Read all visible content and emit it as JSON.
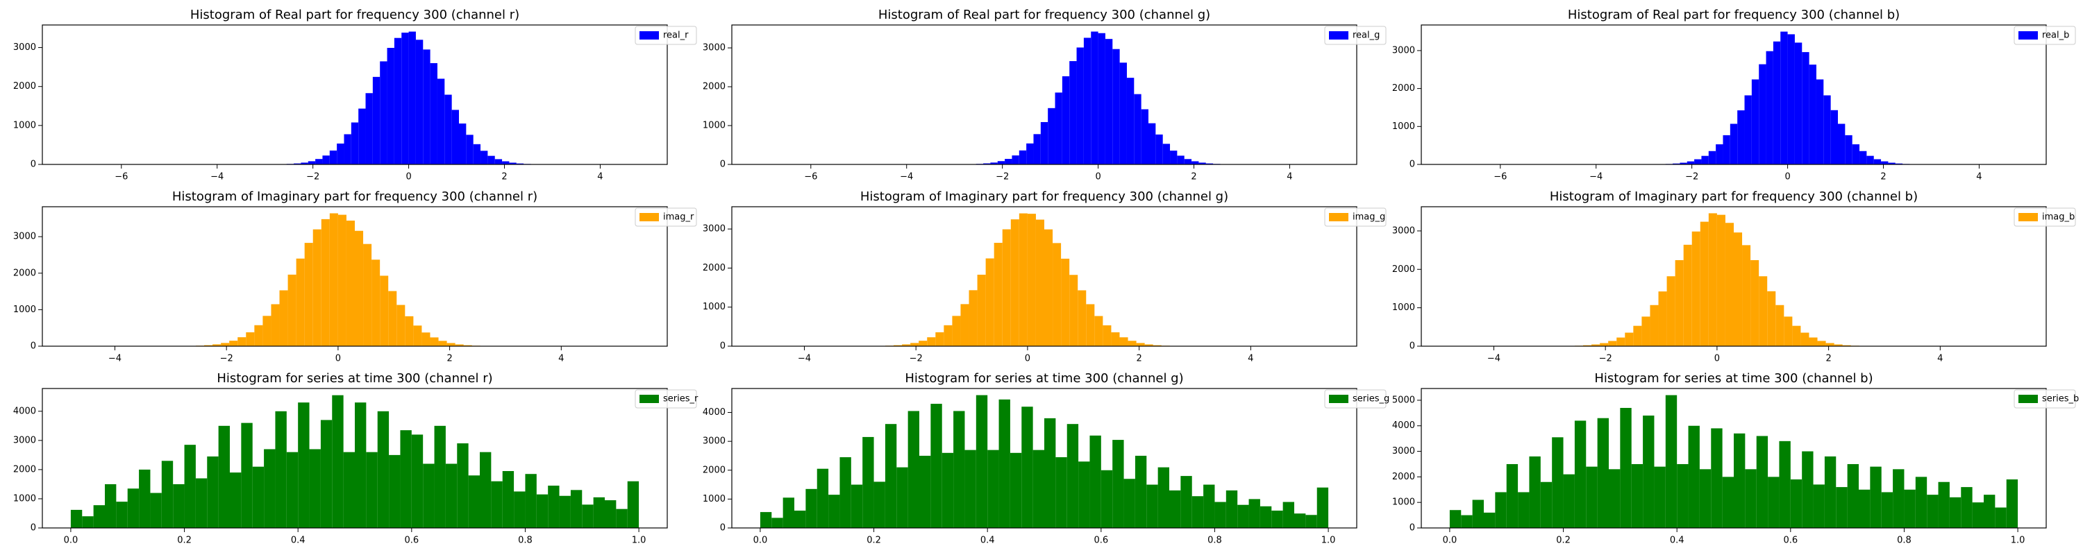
{
  "chart_data": [
    {
      "type": "histogram",
      "title": "Histogram of Real part for frequency 300 (channel r)",
      "legend": "upper right",
      "bins": [
        -3,
        -2.85,
        -2.7,
        -2.55,
        -2.4,
        -2.25,
        -2.1,
        -1.95,
        -1.8,
        -1.65,
        -1.5,
        -1.35,
        -1.2,
        -1.05,
        -0.9,
        -0.75,
        -0.6,
        -0.45,
        -0.3,
        -0.15,
        0,
        0.15,
        0.3,
        0.45,
        0.6,
        0.75,
        0.9,
        1.05,
        1.2,
        1.35,
        1.5,
        1.65,
        1.8,
        1.95,
        2.1,
        2.25,
        2.4,
        2.55,
        2.7,
        2.85,
        3
      ],
      "series": [
        {
          "name": "real_r",
          "color": "#0000ff",
          "values": [
            1,
            3,
            6,
            13,
            25,
            46,
            82,
            139,
            228,
            356,
            536,
            775,
            1077,
            1433,
            1830,
            2247,
            2646,
            2992,
            3247,
            3383,
            3410,
            3200,
            2950,
            2600,
            2200,
            1790,
            1400,
            1050,
            760,
            520,
            350,
            220,
            135,
            80,
            45,
            24,
            12,
            6,
            3,
            1
          ]
        }
      ],
      "xlim": [
        -7.65,
        5.4
      ],
      "ylim": [
        0,
        3580
      ],
      "xticks": [
        {
          "value": -6,
          "label": "−6"
        },
        {
          "value": -4,
          "label": "−4"
        },
        {
          "value": -2,
          "label": "−2"
        },
        0,
        2,
        4
      ],
      "yticks": [
        0,
        1000,
        2000,
        3000
      ]
    },
    {
      "type": "histogram",
      "title": "Histogram of Real part for frequency 300 (channel g)",
      "legend": "upper right",
      "bins": [
        -3,
        -2.85,
        -2.7,
        -2.55,
        -2.4,
        -2.25,
        -2.1,
        -1.95,
        -1.8,
        -1.65,
        -1.5,
        -1.35,
        -1.2,
        -1.05,
        -0.9,
        -0.75,
        -0.6,
        -0.45,
        -0.3,
        -0.15,
        0,
        0.15,
        0.3,
        0.45,
        0.6,
        0.75,
        0.9,
        1.05,
        1.2,
        1.35,
        1.5,
        1.65,
        1.8,
        1.95,
        2.1,
        2.25,
        2.4,
        2.55,
        2.7,
        2.85,
        3
      ],
      "series": [
        {
          "name": "real_g",
          "color": "#0000ff",
          "values": [
            2,
            4,
            7,
            14,
            27,
            48,
            85,
            142,
            231,
            360,
            540,
            780,
            1090,
            1450,
            1850,
            2270,
            2660,
            3010,
            3260,
            3420,
            3380,
            3230,
            2970,
            2620,
            2230,
            1810,
            1420,
            1060,
            770,
            530,
            355,
            225,
            138,
            81,
            46,
            25,
            13,
            6,
            3,
            1
          ]
        }
      ],
      "xlim": [
        -7.65,
        5.4
      ],
      "ylim": [
        0,
        3590
      ],
      "xticks": [
        {
          "value": -6,
          "label": "−6"
        },
        {
          "value": -4,
          "label": "−4"
        },
        {
          "value": -2,
          "label": "−2"
        },
        0,
        2,
        4
      ],
      "yticks": [
        0,
        1000,
        2000,
        3000
      ]
    },
    {
      "type": "histogram",
      "title": "Histogram of Real part for frequency 300 (channel b)",
      "legend": "upper right",
      "bins": [
        -3,
        -2.85,
        -2.7,
        -2.55,
        -2.4,
        -2.25,
        -2.1,
        -1.95,
        -1.8,
        -1.65,
        -1.5,
        -1.35,
        -1.2,
        -1.05,
        -0.9,
        -0.75,
        -0.6,
        -0.45,
        -0.3,
        -0.15,
        0,
        0.15,
        0.3,
        0.45,
        0.6,
        0.75,
        0.9,
        1.05,
        1.2,
        1.35,
        1.5,
        1.65,
        1.8,
        1.95,
        2.1,
        2.25,
        2.4,
        2.55,
        2.7,
        2.85,
        3
      ],
      "series": [
        {
          "name": "real_b",
          "color": "#0000ff",
          "values": [
            1,
            3,
            6,
            12,
            24,
            45,
            80,
            136,
            225,
            352,
            530,
            770,
            1070,
            1425,
            1820,
            2240,
            2640,
            2985,
            3240,
            3500,
            3430,
            3210,
            2960,
            2630,
            2240,
            1820,
            1430,
            1070,
            770,
            530,
            352,
            226,
            137,
            81,
            45,
            24,
            12,
            6,
            3,
            2
          ]
        }
      ],
      "xlim": [
        -7.65,
        5.4
      ],
      "ylim": [
        0,
        3675
      ],
      "xticks": [
        {
          "value": -6,
          "label": "−6"
        },
        {
          "value": -4,
          "label": "−4"
        },
        {
          "value": -2,
          "label": "−2"
        },
        0,
        2,
        4
      ],
      "yticks": [
        0,
        1000,
        2000,
        3000
      ]
    },
    {
      "type": "histogram",
      "title": "Histogram of Imaginary part for frequency 300 (channel r)",
      "legend": "upper right",
      "bins": [
        -3,
        -2.85,
        -2.7,
        -2.55,
        -2.4,
        -2.25,
        -2.1,
        -1.95,
        -1.8,
        -1.65,
        -1.5,
        -1.35,
        -1.2,
        -1.05,
        -0.9,
        -0.75,
        -0.6,
        -0.45,
        -0.3,
        -0.15,
        0,
        0.15,
        0.3,
        0.45,
        0.6,
        0.75,
        0.9,
        1.05,
        1.2,
        1.35,
        1.5,
        1.65,
        1.8,
        1.95,
        2.1,
        2.25,
        2.4,
        2.55,
        2.7,
        2.85,
        3
      ],
      "series": [
        {
          "name": "imag_r",
          "color": "#ffa500",
          "values": [
            1,
            3,
            7,
            14,
            27,
            50,
            88,
            150,
            245,
            380,
            575,
            830,
            1150,
            1530,
            1960,
            2400,
            2830,
            3200,
            3480,
            3640,
            3600,
            3440,
            3160,
            2800,
            2370,
            1930,
            1510,
            1130,
            820,
            565,
            375,
            240,
            146,
            86,
            48,
            26,
            13,
            6,
            3,
            1
          ]
        }
      ],
      "xlim": [
        -5.3,
        5.9
      ],
      "ylim": [
        0,
        3820
      ],
      "xticks": [
        {
          "value": -4,
          "label": "−4"
        },
        {
          "value": -2,
          "label": "−2"
        },
        0,
        2,
        4
      ],
      "yticks": [
        0,
        1000,
        2000,
        3000
      ]
    },
    {
      "type": "histogram",
      "title": "Histogram of Imaginary part for frequency 300 (channel g)",
      "legend": "upper right",
      "bins": [
        -3,
        -2.85,
        -2.7,
        -2.55,
        -2.4,
        -2.25,
        -2.1,
        -1.95,
        -1.8,
        -1.65,
        -1.5,
        -1.35,
        -1.2,
        -1.05,
        -0.9,
        -0.75,
        -0.6,
        -0.45,
        -0.3,
        -0.15,
        0,
        0.15,
        0.3,
        0.45,
        0.6,
        0.75,
        0.9,
        1.05,
        1.2,
        1.35,
        1.5,
        1.65,
        1.8,
        1.95,
        2.1,
        2.25,
        2.4,
        2.55,
        2.7,
        2.85,
        3
      ],
      "series": [
        {
          "name": "imag_g",
          "color": "#ffa500",
          "values": [
            1,
            3,
            6,
            13,
            25,
            46,
            82,
            139,
            228,
            356,
            536,
            775,
            1077,
            1433,
            1830,
            2247,
            2646,
            2992,
            3247,
            3400,
            3390,
            3240,
            2990,
            2640,
            2240,
            1825,
            1430,
            1075,
            772,
            534,
            355,
            227,
            138,
            81,
            45,
            24,
            12,
            6,
            3,
            1
          ]
        }
      ],
      "xlim": [
        -5.3,
        5.9
      ],
      "ylim": [
        0,
        3570
      ],
      "xticks": [
        {
          "value": -4,
          "label": "−4"
        },
        {
          "value": -2,
          "label": "−2"
        },
        0,
        2,
        4
      ],
      "yticks": [
        0,
        1000,
        2000,
        3000
      ]
    },
    {
      "type": "histogram",
      "title": "Histogram of Imaginary part for frequency 300 (channel b)",
      "legend": "upper right",
      "bins": [
        -3,
        -2.85,
        -2.7,
        -2.55,
        -2.4,
        -2.25,
        -2.1,
        -1.95,
        -1.8,
        -1.65,
        -1.5,
        -1.35,
        -1.2,
        -1.05,
        -0.9,
        -0.75,
        -0.6,
        -0.45,
        -0.3,
        -0.15,
        0,
        0.15,
        0.3,
        0.45,
        0.6,
        0.75,
        0.9,
        1.05,
        1.2,
        1.35,
        1.5,
        1.65,
        1.8,
        1.95,
        2.1,
        2.25,
        2.4,
        2.55,
        2.7,
        2.85,
        3
      ],
      "series": [
        {
          "name": "imag_b",
          "color": "#ffa500",
          "values": [
            1,
            3,
            6,
            12,
            24,
            45,
            80,
            136,
            225,
            352,
            530,
            770,
            1070,
            1425,
            1820,
            2240,
            2640,
            2985,
            3240,
            3460,
            3420,
            3210,
            2960,
            2630,
            2240,
            1820,
            1430,
            1070,
            770,
            530,
            352,
            226,
            137,
            81,
            45,
            24,
            12,
            6,
            3,
            2
          ]
        }
      ],
      "xlim": [
        -5.3,
        5.9
      ],
      "ylim": [
        0,
        3630
      ],
      "xticks": [
        {
          "value": -4,
          "label": "−4"
        },
        {
          "value": -2,
          "label": "−2"
        },
        0,
        2,
        4
      ],
      "yticks": [
        0,
        1000,
        2000,
        3000
      ]
    },
    {
      "type": "histogram",
      "title": "Histogram for series at time 300 (channel r)",
      "legend": "upper right",
      "bins": [
        0,
        0.02,
        0.04,
        0.06,
        0.08,
        0.1,
        0.12,
        0.14,
        0.16,
        0.18,
        0.2,
        0.22,
        0.24,
        0.26,
        0.28,
        0.3,
        0.32,
        0.34,
        0.36,
        0.38,
        0.4,
        0.42,
        0.44,
        0.46,
        0.48,
        0.5,
        0.52,
        0.54,
        0.56,
        0.58,
        0.6,
        0.62,
        0.64,
        0.66,
        0.68,
        0.7,
        0.72,
        0.74,
        0.76,
        0.78,
        0.8,
        0.82,
        0.84,
        0.86,
        0.88,
        0.9,
        0.92,
        0.94,
        0.96,
        0.98,
        1
      ],
      "series": [
        {
          "name": "series_r",
          "color": "#008000",
          "values": [
            620,
            400,
            780,
            1500,
            900,
            1350,
            2000,
            1200,
            2300,
            1500,
            2850,
            1700,
            2450,
            3500,
            1900,
            3600,
            2100,
            2700,
            4000,
            2600,
            4300,
            2700,
            3700,
            4550,
            2600,
            4300,
            2600,
            4000,
            2500,
            3350,
            3200,
            2200,
            3500,
            2200,
            2900,
            1800,
            2600,
            1600,
            1950,
            1250,
            1850,
            1150,
            1450,
            1100,
            1300,
            800,
            1050,
            950,
            650,
            1600
          ]
        }
      ],
      "xlim": [
        -0.05,
        1.05
      ],
      "ylim": [
        0,
        4780
      ],
      "xticks": [
        {
          "value": 0,
          "label": "0.0"
        },
        0.2,
        0.4,
        0.6,
        0.8,
        {
          "value": 1,
          "label": "1.0"
        }
      ],
      "yticks": [
        0,
        1000,
        2000,
        3000,
        4000
      ]
    },
    {
      "type": "histogram",
      "title": "Histogram for series at time 300 (channel g)",
      "legend": "upper right",
      "bins": [
        0,
        0.02,
        0.04,
        0.06,
        0.08,
        0.1,
        0.12,
        0.14,
        0.16,
        0.18,
        0.2,
        0.22,
        0.24,
        0.26,
        0.28,
        0.3,
        0.32,
        0.34,
        0.36,
        0.38,
        0.4,
        0.42,
        0.44,
        0.46,
        0.48,
        0.5,
        0.52,
        0.54,
        0.56,
        0.58,
        0.6,
        0.62,
        0.64,
        0.66,
        0.68,
        0.7,
        0.72,
        0.74,
        0.76,
        0.78,
        0.8,
        0.82,
        0.84,
        0.86,
        0.88,
        0.9,
        0.92,
        0.94,
        0.96,
        0.98,
        1
      ],
      "series": [
        {
          "name": "series_g",
          "color": "#008000",
          "values": [
            550,
            350,
            1050,
            600,
            1350,
            2050,
            1150,
            2450,
            1500,
            3150,
            1600,
            3600,
            2100,
            4050,
            2500,
            4300,
            2600,
            4050,
            2700,
            4600,
            2700,
            4450,
            2600,
            4200,
            2700,
            3800,
            2450,
            3600,
            2300,
            3200,
            2000,
            3050,
            1700,
            2500,
            1500,
            2100,
            1300,
            1800,
            1100,
            1500,
            900,
            1300,
            800,
            1000,
            750,
            600,
            900,
            500,
            450,
            1400
          ]
        }
      ],
      "xlim": [
        -0.05,
        1.05
      ],
      "ylim": [
        0,
        4830
      ],
      "xticks": [
        {
          "value": 0,
          "label": "0.0"
        },
        0.2,
        0.4,
        0.6,
        0.8,
        {
          "value": 1,
          "label": "1.0"
        }
      ],
      "yticks": [
        0,
        1000,
        2000,
        3000,
        4000
      ]
    },
    {
      "type": "histogram",
      "title": "Histogram for series at time 300 (channel b)",
      "legend": "upper right",
      "bins": [
        0,
        0.02,
        0.04,
        0.06,
        0.08,
        0.1,
        0.12,
        0.14,
        0.16,
        0.18,
        0.2,
        0.22,
        0.24,
        0.26,
        0.28,
        0.3,
        0.32,
        0.34,
        0.36,
        0.38,
        0.4,
        0.42,
        0.44,
        0.46,
        0.48,
        0.5,
        0.52,
        0.54,
        0.56,
        0.58,
        0.6,
        0.62,
        0.64,
        0.66,
        0.68,
        0.7,
        0.72,
        0.74,
        0.76,
        0.78,
        0.8,
        0.82,
        0.84,
        0.86,
        0.88,
        0.9,
        0.92,
        0.94,
        0.96,
        0.98,
        1
      ],
      "series": [
        {
          "name": "series_b",
          "color": "#008000",
          "values": [
            700,
            500,
            1100,
            600,
            1400,
            2500,
            1400,
            2800,
            1800,
            3550,
            2100,
            4200,
            2400,
            4300,
            2300,
            4700,
            2500,
            4400,
            2400,
            5200,
            2500,
            4000,
            2300,
            3900,
            2000,
            3700,
            2300,
            3600,
            2000,
            3400,
            1900,
            3000,
            1700,
            2800,
            1600,
            2500,
            1500,
            2400,
            1400,
            2300,
            1500,
            2000,
            1300,
            1800,
            1200,
            1600,
            1000,
            1300,
            800,
            1900
          ]
        }
      ],
      "xlim": [
        -0.05,
        1.05
      ],
      "ylim": [
        0,
        5460
      ],
      "xticks": [
        {
          "value": 0,
          "label": "0.0"
        },
        0.2,
        0.4,
        0.6,
        0.8,
        {
          "value": 1,
          "label": "1.0"
        }
      ],
      "yticks": [
        0,
        1000,
        2000,
        3000,
        4000,
        5000
      ]
    }
  ]
}
